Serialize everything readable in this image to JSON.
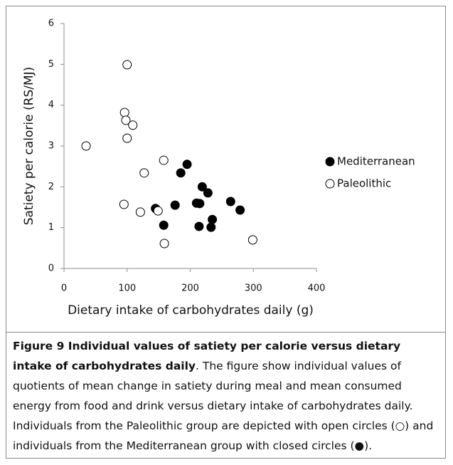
{
  "chart_data": {
    "type": "scatter",
    "x_label": "Dietary intake of carbohydrates daily (g)",
    "y_label": "Satiety per calorie (RS/MJ)",
    "xlim": [
      0,
      400
    ],
    "xticks": [
      0,
      100,
      200,
      300,
      400
    ],
    "ylim": [
      0,
      6
    ],
    "yticks": [
      0,
      1,
      2,
      3,
      4,
      5,
      6
    ],
    "grid": false,
    "legend": "right",
    "series": [
      {
        "name": "Mediterranean",
        "color": "#000000",
        "filled": true,
        "x": [
          145,
          158,
          176,
          185,
          195,
          210,
          215,
          214,
          219,
          228,
          233,
          235,
          264,
          279
        ],
        "values": [
          1.47,
          1.06,
          1.55,
          2.34,
          2.55,
          1.6,
          1.59,
          1.03,
          2.0,
          1.85,
          1.01,
          1.2,
          1.64,
          1.43
        ]
      },
      {
        "name": "Paleolithic",
        "color": "#000000",
        "filled": false,
        "x": [
          100,
          96,
          98,
          109,
          100,
          35,
          127,
          158,
          95,
          121,
          149,
          159,
          299
        ],
        "values": [
          4.99,
          3.82,
          3.63,
          3.51,
          3.19,
          3.0,
          2.34,
          2.65,
          1.57,
          1.38,
          1.41,
          0.61,
          0.7
        ]
      }
    ]
  },
  "caption": {
    "title": "Figure 9 Individual values of satiety per calorie versus dietary intake of carbohydrates daily",
    "text": ". The figure show individual values of quotients of mean change in satiety during meal and mean consumed energy from food and drink versus dietary intake of carbohydrates daily. Individuals from the Paleolithic group are depicted with open circles (○) and individuals from the Mediterranean group with closed circles (●)."
  }
}
